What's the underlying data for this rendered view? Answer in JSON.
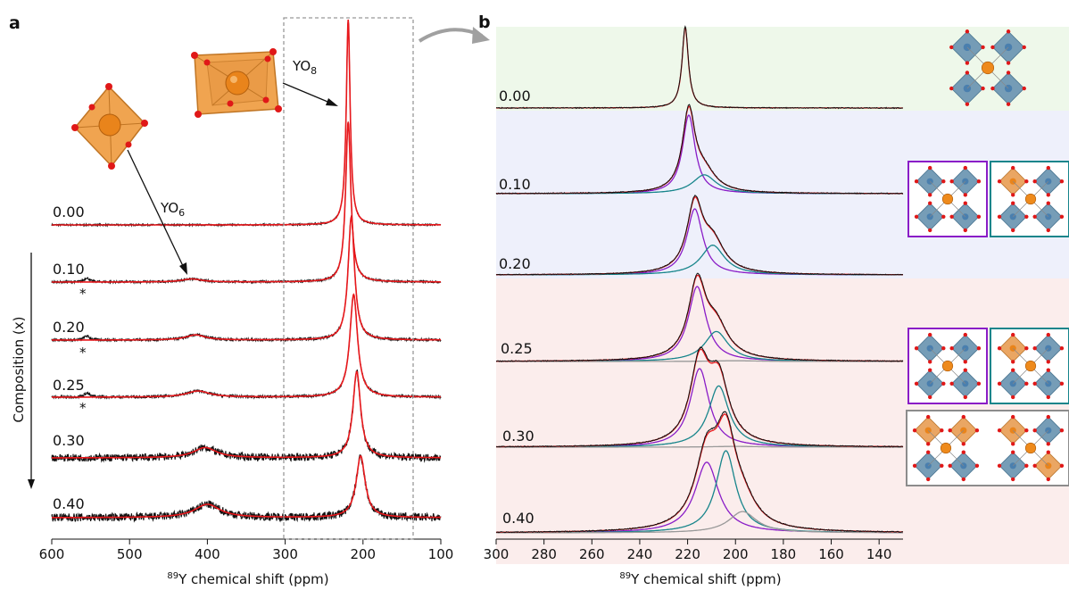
{
  "colors": {
    "exp": "#111111",
    "fit": "#e8171b",
    "yo6_component": "#8a1dc7",
    "yo7_component": "#17858b",
    "yo8_component": "#999999",
    "bg_green": "#eef8ea",
    "bg_blue": "#eef0fb",
    "bg_red": "#fbedec"
  },
  "chart_data": [
    {
      "type": "line",
      "panel": "a",
      "xlabel_sup": "89",
      "xlabel": "Y chemical shift (ppm)",
      "ylabel": "Composition (x)",
      "xlim": [
        600,
        100
      ],
      "xticks": [
        "600",
        "500",
        "400",
        "300",
        "200",
        "100"
      ],
      "annotations": [
        {
          "text": "YO",
          "sub": "8"
        },
        {
          "text": "YO",
          "sub": "6"
        },
        {
          "text": "*"
        }
      ],
      "series": [
        {
          "label": "0.00",
          "peaks": [
            {
              "center": 219,
              "height": 1.0,
              "width": 3
            }
          ],
          "noise": 0.004
        },
        {
          "label": "0.10",
          "peaks": [
            {
              "center": 219,
              "height": 0.78,
              "width": 4
            },
            {
              "center": 420,
              "height": 0.015,
              "width": 15
            }
          ],
          "impurity": 555,
          "noise": 0.005
        },
        {
          "label": "0.20",
          "peaks": [
            {
              "center": 215,
              "height": 0.6,
              "width": 5
            },
            {
              "center": 415,
              "height": 0.025,
              "width": 15
            }
          ],
          "impurity": 555,
          "noise": 0.006
        },
        {
          "label": "0.25",
          "peaks": [
            {
              "center": 212,
              "height": 0.5,
              "width": 6
            },
            {
              "center": 412,
              "height": 0.03,
              "width": 18
            }
          ],
          "impurity": 555,
          "noise": 0.006
        },
        {
          "label": "0.30",
          "peaks": [
            {
              "center": 208,
              "height": 0.42,
              "width": 6
            },
            {
              "center": 403,
              "height": 0.05,
              "width": 18
            }
          ],
          "noise": 0.018
        },
        {
          "label": "0.40",
          "peaks": [
            {
              "center": 203,
              "height": 0.3,
              "width": 7
            },
            {
              "center": 400,
              "height": 0.065,
              "width": 20
            }
          ],
          "noise": 0.02
        }
      ]
    },
    {
      "type": "line",
      "panel": "b",
      "xlabel_sup": "89",
      "xlabel": "Y chemical shift (ppm)",
      "xlim": [
        300,
        130
      ],
      "xticks": [
        "300",
        "280",
        "260",
        "240",
        "220",
        "200",
        "180",
        "160",
        "140"
      ],
      "series": [
        {
          "label": "0.00",
          "components": [
            {
              "center": 221,
              "height": 1.0,
              "width": 1.6,
              "color": "exp"
            }
          ]
        },
        {
          "label": "0.10",
          "components": [
            {
              "center": 219.5,
              "height": 1.0,
              "width": 3.2,
              "color": "yo6"
            },
            {
              "center": 213,
              "height": 0.24,
              "width": 6,
              "color": "yo7"
            }
          ]
        },
        {
          "label": "0.20",
          "components": [
            {
              "center": 217,
              "height": 1.0,
              "width": 4,
              "color": "yo6"
            },
            {
              "center": 209.5,
              "height": 0.45,
              "width": 6,
              "color": "yo7"
            }
          ]
        },
        {
          "label": "0.25",
          "components": [
            {
              "center": 216,
              "height": 1.0,
              "width": 4.5,
              "color": "yo6"
            },
            {
              "center": 208,
              "height": 0.4,
              "width": 6,
              "color": "yo7"
            },
            {
              "center": 200,
              "height": 0.01,
              "width": 12,
              "color": "yo8"
            }
          ]
        },
        {
          "label": "0.30",
          "components": [
            {
              "center": 215,
              "height": 1.0,
              "width": 4.8,
              "color": "yo6"
            },
            {
              "center": 207,
              "height": 0.78,
              "width": 5.2,
              "color": "yo7"
            },
            {
              "center": 200,
              "height": 0.01,
              "width": 12,
              "color": "yo8"
            }
          ]
        },
        {
          "label": "0.40",
          "components": [
            {
              "center": 212,
              "height": 0.86,
              "width": 6,
              "color": "yo6"
            },
            {
              "center": 204,
              "height": 1.0,
              "width": 5,
              "color": "yo7"
            },
            {
              "center": 197,
              "height": 0.26,
              "width": 7,
              "color": "yo8"
            }
          ]
        }
      ]
    }
  ],
  "panel_labels": {
    "a": "a",
    "b": "b"
  }
}
